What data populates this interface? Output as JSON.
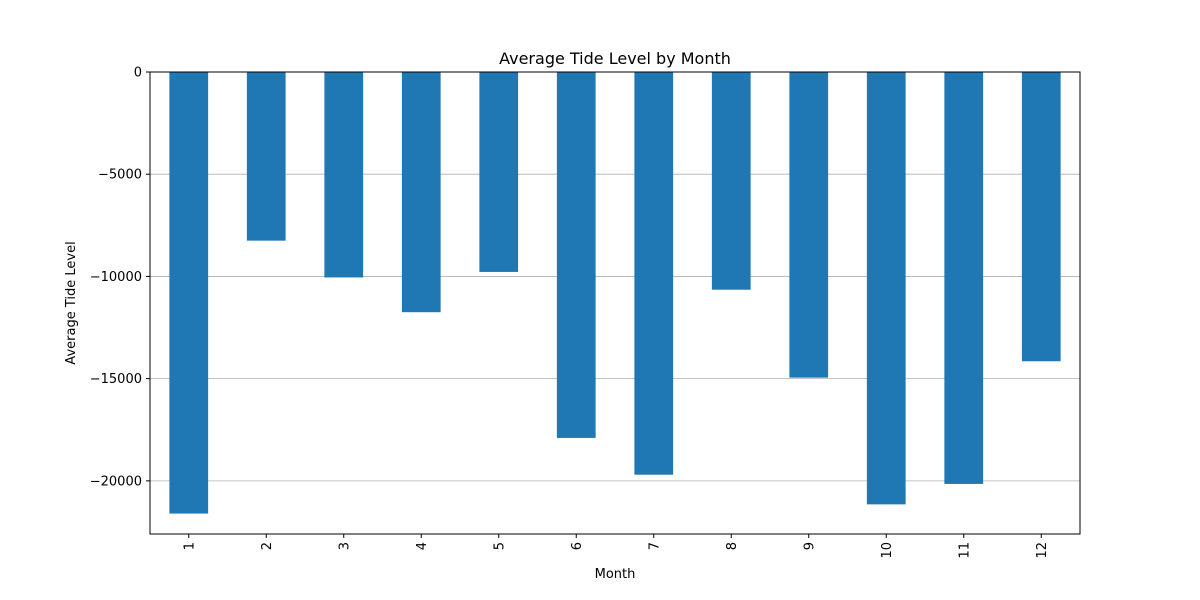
{
  "chart_data": {
    "type": "bar",
    "title": "Average Tide Level by Month",
    "xlabel": "Month",
    "ylabel": "Average Tide Level",
    "categories": [
      "1",
      "2",
      "3",
      "4",
      "5",
      "6",
      "7",
      "8",
      "9",
      "10",
      "11",
      "12"
    ],
    "values": [
      -21600,
      -8250,
      -10050,
      -11750,
      -9780,
      -17900,
      -19700,
      -10650,
      -14950,
      -21150,
      -20150,
      -14150
    ],
    "ylim": [
      -22600,
      0
    ],
    "yticks": [
      0,
      -5000,
      -10000,
      -15000,
      -20000
    ],
    "ytick_labels": [
      "0",
      "−5000",
      "−10000",
      "−15000",
      "−20000"
    ],
    "grid": "horizontal",
    "bar_color": "#1f77b4",
    "grid_color": "#b0b0b0"
  }
}
